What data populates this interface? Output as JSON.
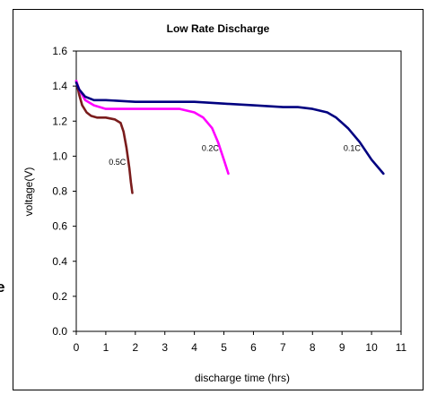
{
  "chart_data": {
    "type": "line",
    "title": "Low Rate Discharge",
    "xlabel": "discharge time (hrs)",
    "ylabel": "voltage(V)",
    "xlim": [
      0,
      11
    ],
    "ylim": [
      0.0,
      1.6
    ],
    "xticks": [
      "0",
      "1",
      "2",
      "3",
      "4",
      "5",
      "6",
      "7",
      "8",
      "9",
      "10",
      "11"
    ],
    "yticks": [
      "0.0",
      "0.2",
      "0.4",
      "0.6",
      "0.8",
      "1.0",
      "1.2",
      "1.4",
      "1.6"
    ],
    "grid": false,
    "legend": "none",
    "series": [
      {
        "name": "0.5C",
        "color": "#7a1c1c",
        "x": [
          0,
          0.1,
          0.2,
          0.35,
          0.5,
          0.7,
          1.0,
          1.3,
          1.5,
          1.6,
          1.7,
          1.8,
          1.85,
          1.9
        ],
        "y": [
          1.43,
          1.35,
          1.29,
          1.25,
          1.23,
          1.22,
          1.22,
          1.21,
          1.19,
          1.14,
          1.05,
          0.93,
          0.85,
          0.79
        ]
      },
      {
        "name": "0.2C",
        "color": "#ff00ff",
        "x": [
          0,
          0.1,
          0.3,
          0.6,
          1.0,
          2.0,
          3.0,
          3.5,
          4.0,
          4.3,
          4.6,
          4.8,
          5.0,
          5.15
        ],
        "y": [
          1.43,
          1.38,
          1.32,
          1.29,
          1.27,
          1.27,
          1.27,
          1.27,
          1.25,
          1.22,
          1.16,
          1.08,
          0.98,
          0.9
        ]
      },
      {
        "name": "0.1C",
        "color": "#000080",
        "x": [
          0,
          0.1,
          0.3,
          0.6,
          1.0,
          2.0,
          3.0,
          4.0,
          5.0,
          6.0,
          7.0,
          7.5,
          8.0,
          8.5,
          8.8,
          9.2,
          9.6,
          10.0,
          10.4
        ],
        "y": [
          1.42,
          1.38,
          1.34,
          1.32,
          1.32,
          1.31,
          1.31,
          1.31,
          1.3,
          1.29,
          1.28,
          1.28,
          1.27,
          1.25,
          1.22,
          1.16,
          1.08,
          0.98,
          0.9
        ]
      }
    ],
    "annotations": [
      {
        "text": "0.5C",
        "x": 1.1,
        "y": 0.95
      },
      {
        "text": "0.2C",
        "x": 4.25,
        "y": 1.03
      },
      {
        "text": "0.1C",
        "x": 9.05,
        "y": 1.03
      }
    ]
  },
  "stray_text": "е"
}
